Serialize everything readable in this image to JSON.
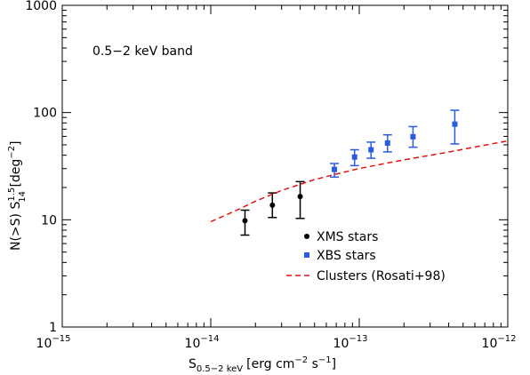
{
  "chart_data": {
    "type": "scatter",
    "x_scale": "log",
    "y_scale": "log",
    "xlim": [
      1e-15,
      1e-12
    ],
    "ylim": [
      1,
      1000
    ],
    "x_ticks": [
      {
        "value": 1e-15,
        "base": "10",
        "exp": "−15"
      },
      {
        "value": 1e-14,
        "base": "10",
        "exp": "−14"
      },
      {
        "value": 1e-13,
        "base": "10",
        "exp": "−13"
      },
      {
        "value": 1e-12,
        "base": "10",
        "exp": "−12"
      }
    ],
    "y_ticks": [
      {
        "value": 1,
        "label": "1"
      },
      {
        "value": 10,
        "label": "10"
      },
      {
        "value": 100,
        "label": "100"
      },
      {
        "value": 1000,
        "label": "1000"
      }
    ],
    "annotation": "0.5−2 keV band",
    "xlabel": {
      "symbol": "S",
      "subscript": "0.5−2 keV",
      "units": "[erg cm",
      "exp1": "−2",
      "mid": " s",
      "exp2": "−1",
      "close": "]"
    },
    "ylabel": {
      "main": "N(>S) S",
      "sup": "1.5",
      "sub": "14",
      "units": " [deg",
      "exp": "−2",
      "close": "]"
    },
    "legend": {
      "placement": "lower-center",
      "entries": [
        "XMS stars",
        "XBS stars",
        "Clusters (Rosati+98)"
      ]
    },
    "colors": {
      "xms": "#000000",
      "xbs": "#2a5be0",
      "clusters": "#e01010"
    },
    "series": [
      {
        "name": "XMS stars",
        "marker": "circle",
        "points": [
          {
            "x": 1.7e-14,
            "y": 9.8,
            "ylo": 7.2,
            "yhi": 12.3
          },
          {
            "x": 2.6e-14,
            "y": 13.7,
            "ylo": 10.5,
            "yhi": 17.8
          },
          {
            "x": 4e-14,
            "y": 16.5,
            "ylo": 10.3,
            "yhi": 22.7
          }
        ]
      },
      {
        "name": "XBS stars",
        "marker": "square",
        "points": [
          {
            "x": 6.8e-14,
            "y": 29.5,
            "ylo": 25.0,
            "yhi": 33.5
          },
          {
            "x": 9.3e-14,
            "y": 38.5,
            "ylo": 32.0,
            "yhi": 45.0
          },
          {
            "x": 1.2e-13,
            "y": 45.0,
            "ylo": 37.5,
            "yhi": 53.0
          },
          {
            "x": 1.55e-13,
            "y": 52.0,
            "ylo": 43.0,
            "yhi": 62.0
          },
          {
            "x": 2.3e-13,
            "y": 59.5,
            "ylo": 47.5,
            "yhi": 74.0
          },
          {
            "x": 4.4e-13,
            "y": 78.0,
            "ylo": 51.0,
            "yhi": 105.0
          }
        ]
      },
      {
        "name": "Clusters (Rosati+98)",
        "marker": "dashed-line",
        "points": [
          {
            "x": 1e-14,
            "y": 9.6
          },
          {
            "x": 1.5e-14,
            "y": 12.3
          },
          {
            "x": 2e-14,
            "y": 14.9
          },
          {
            "x": 3e-14,
            "y": 18.8
          },
          {
            "x": 5e-14,
            "y": 23.7
          },
          {
            "x": 7e-14,
            "y": 26.7
          },
          {
            "x": 1e-13,
            "y": 30.1
          },
          {
            "x": 2e-13,
            "y": 36.2
          },
          {
            "x": 4e-13,
            "y": 42.8
          },
          {
            "x": 7e-13,
            "y": 49.6
          },
          {
            "x": 1e-12,
            "y": 54.5
          }
        ]
      }
    ]
  }
}
